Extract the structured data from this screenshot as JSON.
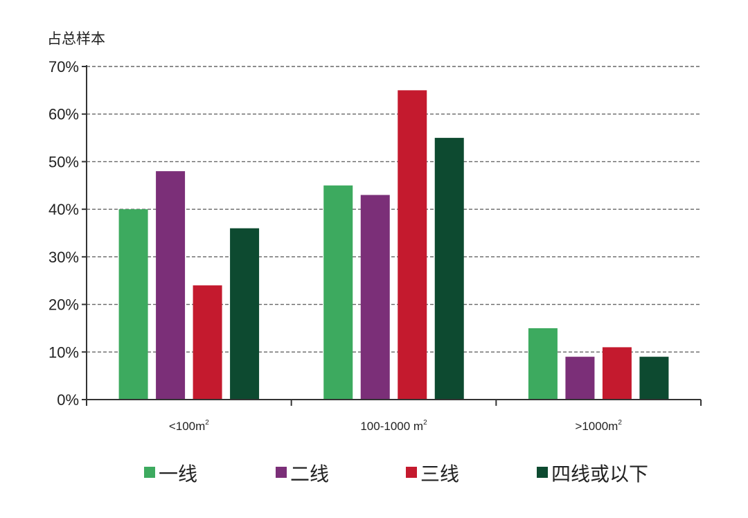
{
  "chart_data": {
    "type": "bar",
    "ylabel": "占总样本",
    "xlabel": "",
    "ylim": [
      0,
      70
    ],
    "y_ticks": [
      "0%",
      "10%",
      "20%",
      "30%",
      "40%",
      "50%",
      "60%",
      "70%"
    ],
    "grid": "horizontal dashed",
    "legend_position": "bottom",
    "categories": [
      {
        "label": "<100m",
        "sup": "2"
      },
      {
        "label": "100-1000 m",
        "sup": "2"
      },
      {
        "label": ">1000m",
        "sup": "2"
      }
    ],
    "series": [
      {
        "name": "一线",
        "color": "#3daa5f",
        "values": [
          40,
          45,
          15
        ]
      },
      {
        "name": "二线",
        "color": "#7b2f78",
        "values": [
          48,
          43,
          9
        ]
      },
      {
        "name": "三线",
        "color": "#c41a2e",
        "values": [
          24,
          65,
          11
        ]
      },
      {
        "name": "四线或以下",
        "color": "#0d4a30",
        "values": [
          36,
          55,
          9
        ]
      }
    ]
  }
}
